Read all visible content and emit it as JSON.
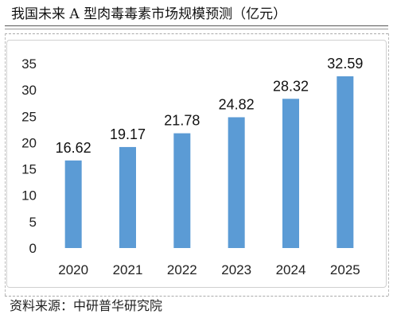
{
  "header": {
    "title": "我国未来 A 型肉毒毒素市场规模预测（亿元）"
  },
  "footer": {
    "source": "资料来源：中研普华研究院"
  },
  "colors": {
    "bar": "#5b9bd5"
  },
  "chart_data": {
    "type": "bar",
    "title": "我国未来 A 型肉毒毒素市场规模预测（亿元）",
    "categories": [
      "2020",
      "2021",
      "2022",
      "2023",
      "2024",
      "2025"
    ],
    "values": [
      16.62,
      19.17,
      21.78,
      24.82,
      28.32,
      32.59
    ],
    "value_labels": [
      "16.62",
      "19.17",
      "21.78",
      "24.82",
      "28.32",
      "32.59"
    ],
    "yticks": [
      "0",
      "5",
      "10",
      "15",
      "20",
      "25",
      "30",
      "35"
    ],
    "ylim": [
      0,
      35
    ],
    "xlabel": "",
    "ylabel": "",
    "grid": false,
    "legend": "none"
  }
}
